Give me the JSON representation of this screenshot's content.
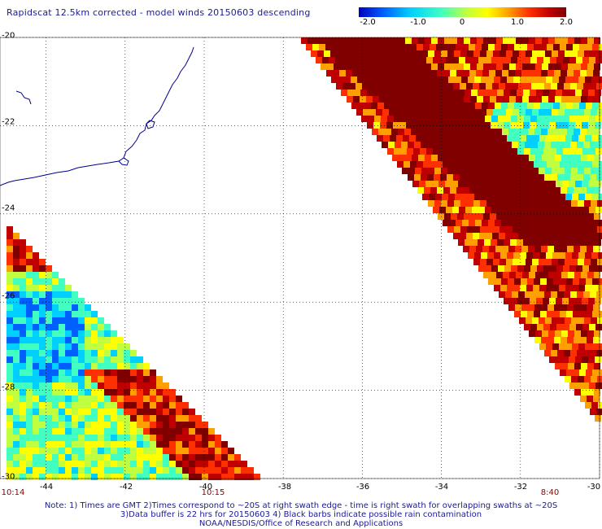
{
  "header": {
    "title": "Rapidscat 12.5km corrected - model winds 20150603 descending"
  },
  "colorbar": {
    "ticks": [
      "-2.0",
      "-1.0",
      "0",
      "1.0",
      "2.0"
    ],
    "tick_values": [
      -2.0,
      -1.0,
      0,
      1.0,
      2.0
    ],
    "range": [
      -2.0,
      2.0
    ],
    "colors": [
      "#0000c0",
      "#0060ff",
      "#00d0ff",
      "#40ffc0",
      "#c0ff40",
      "#ffff00",
      "#ffa000",
      "#ff3000",
      "#c00000",
      "#800000"
    ]
  },
  "map": {
    "lat_labels": [
      "-20",
      "-22",
      "-24",
      "-26",
      "-28",
      "-30"
    ],
    "lat_values": [
      -20,
      -22,
      -24,
      -26,
      -28,
      -30
    ],
    "lon_labels": [
      "-44",
      "-42",
      "-40",
      "-38",
      "-36",
      "-34",
      "-32",
      "-30"
    ],
    "lon_values": [
      -44,
      -42,
      -40,
      -38,
      -36,
      -34,
      -32,
      -30
    ],
    "lon_range": [
      -45,
      -30
    ],
    "lat_range": [
      -30,
      -20
    ],
    "grid_color": "#000000",
    "coast_color": "#00008b",
    "time_labels": [
      {
        "text": "10:14",
        "lon": -45.0
      },
      {
        "text": "10:15",
        "lon": -40.0
      },
      {
        "text": "8:40",
        "lon": -31.5
      }
    ]
  },
  "notes": {
    "line1": "Note: 1) Times are GMT 2)Times correspond to ~20S at right swath edge - time is right swath for overlapping swaths at ~20S",
    "line2": "3)Data buffer is 22 hrs for 20150603 4) Black barbs indicate possible rain contamination",
    "line3": "NOAA/NESDIS/Office of Research and Applications"
  }
}
